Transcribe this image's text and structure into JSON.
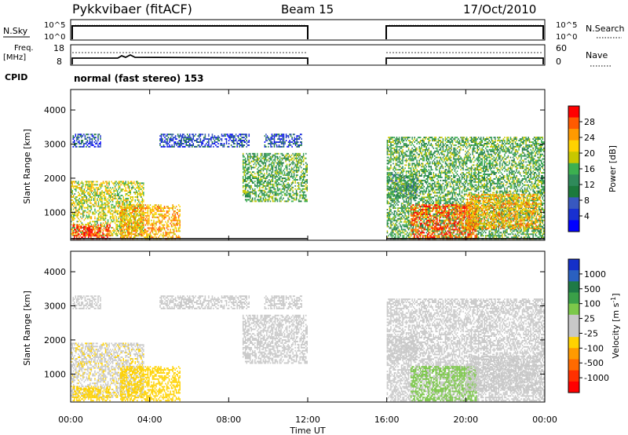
{
  "header": {
    "station": "Pykkvibaer (fitACF)",
    "beam": "Beam 15",
    "date": "17/Oct/2010"
  },
  "top_panels": {
    "nsky_label": "N.Sky",
    "nsearch_label": "N.Search",
    "nsky_ticks": [
      "10^5",
      "10^0"
    ],
    "nsearch_ticks": [
      "10^5",
      "10^0"
    ],
    "freq_label_1": "Freq.",
    "freq_label_2": "[MHz]",
    "freq_ticks": [
      "18",
      "8"
    ],
    "nave_label": "Nave",
    "nave_ticks": [
      "60",
      "0"
    ],
    "cpid_label": "CPID",
    "cpid_text": "normal (fast stereo) 153"
  },
  "colorbars": {
    "power": {
      "label": "Power [dB]",
      "ticks": [
        "28",
        "24",
        "20",
        "16",
        "12",
        "8",
        "4"
      ],
      "colors": [
        "#ff0000",
        "#ff5a00",
        "#ff9a00",
        "#ffd200",
        "#c8c800",
        "#3cb050",
        "#2f8a5a",
        "#1c7a3c",
        "#3858c0",
        "#1830d0",
        "#0000ff"
      ]
    },
    "velocity": {
      "label": "Velocity [m s",
      "label_sup": "-1",
      "label_end": "]",
      "ticks": [
        "1000",
        "500",
        "100",
        "25",
        "-25",
        "-100",
        "-500",
        "-1000"
      ],
      "colors": [
        "#1530c8",
        "#2a60c0",
        "#1e7a46",
        "#3aa048",
        "#7cc84a",
        "#c8c8c8",
        "#c8c8c8",
        "#ffd200",
        "#ff9a00",
        "#ff6a00",
        "#ff3000",
        "#ff0000"
      ]
    }
  },
  "axes": {
    "ylabel": "Slant Range [km]",
    "xlabel": "Time UT",
    "yticks": [
      "4000",
      "3000",
      "2000",
      "1000"
    ],
    "xticks": [
      "00:00",
      "04:00",
      "08:00",
      "12:00",
      "16:00",
      "20:00",
      "00:00"
    ]
  },
  "chart_data": {
    "type": "heatmap",
    "title": "Pykkvibaer (fitACF)",
    "xlabel": "Time UT",
    "ylabel": "Slant Range [km]",
    "xlim_hours": [
      0,
      24
    ],
    "ylim_km": [
      180,
      4600
    ],
    "data_gap_hours": [
      12,
      16
    ],
    "power_scale_db": [
      0,
      30
    ],
    "velocity_scale_ms": [
      -1000,
      1000
    ],
    "echo_regions": [
      {
        "t_start": 0.0,
        "t_end": 3.7,
        "range_low": 300,
        "range_high": 1900,
        "power_db": 18,
        "velocity_ms": -150
      },
      {
        "t_start": 0.1,
        "t_end": 2.0,
        "range_low": 200,
        "range_high": 650,
        "power_db": 28,
        "velocity_ms": -300
      },
      {
        "t_start": 2.5,
        "t_end": 5.5,
        "range_low": 200,
        "range_high": 1200,
        "power_db": 22,
        "velocity_ms": -200
      },
      {
        "t_start": 0.1,
        "t_end": 1.5,
        "range_low": 2900,
        "range_high": 3300,
        "power_db": 6,
        "velocity_ms": 0
      },
      {
        "t_start": 4.5,
        "t_end": 9.0,
        "range_low": 2900,
        "range_high": 3300,
        "power_db": 6,
        "velocity_ms": 0
      },
      {
        "t_start": 8.7,
        "t_end": 12.0,
        "range_low": 1300,
        "range_high": 2700,
        "power_db": 14,
        "velocity_ms": 0
      },
      {
        "t_start": 9.8,
        "t_end": 11.7,
        "range_low": 2900,
        "range_high": 3300,
        "power_db": 6,
        "velocity_ms": 0
      },
      {
        "t_start": 16.0,
        "t_end": 24.0,
        "range_low": 200,
        "range_high": 3200,
        "power_db": 14,
        "velocity_ms": 0
      },
      {
        "t_start": 17.2,
        "t_end": 20.5,
        "range_low": 200,
        "range_high": 1200,
        "power_db": 26,
        "velocity_ms": 300
      },
      {
        "t_start": 20.0,
        "t_end": 23.8,
        "range_low": 500,
        "range_high": 1500,
        "power_db": 22,
        "velocity_ms": 0
      },
      {
        "t_start": 16.0,
        "t_end": 17.5,
        "range_low": 1400,
        "range_high": 2100,
        "power_db": 12,
        "velocity_ms": 0
      }
    ]
  }
}
